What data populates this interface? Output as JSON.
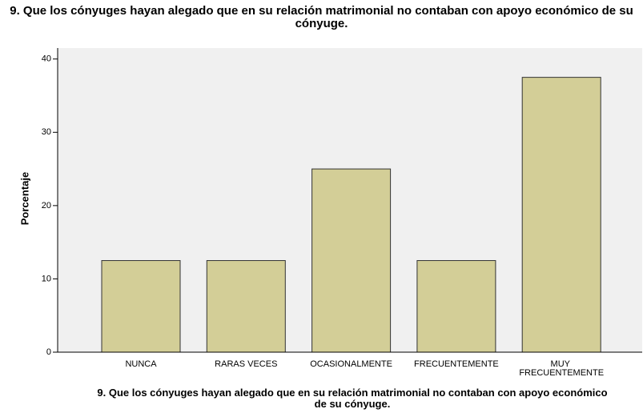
{
  "chart_data": {
    "type": "bar",
    "title": "9. Que los cónyuges hayan alegado que en su relación matrimonial no contaban con apoyo económico de su cónyuge.",
    "x_label": "9. Que los cónyuges hayan alegado que en su relación matrimonial no contaban con apoyo económico de su cónyuge.",
    "y_label": "Porcentaje",
    "categories": [
      "NUNCA",
      "RARAS VECES",
      "OCASIONALMENTE",
      "FRECUENTEMENTE",
      "MUY FRECUENTEMENTE"
    ],
    "values": [
      12.5,
      12.5,
      25,
      12.5,
      37.5
    ],
    "color": "#d3ce97",
    "ylim": [
      0,
      41.5
    ],
    "yticks": [
      0,
      10,
      20,
      30,
      40
    ],
    "grid": false
  }
}
